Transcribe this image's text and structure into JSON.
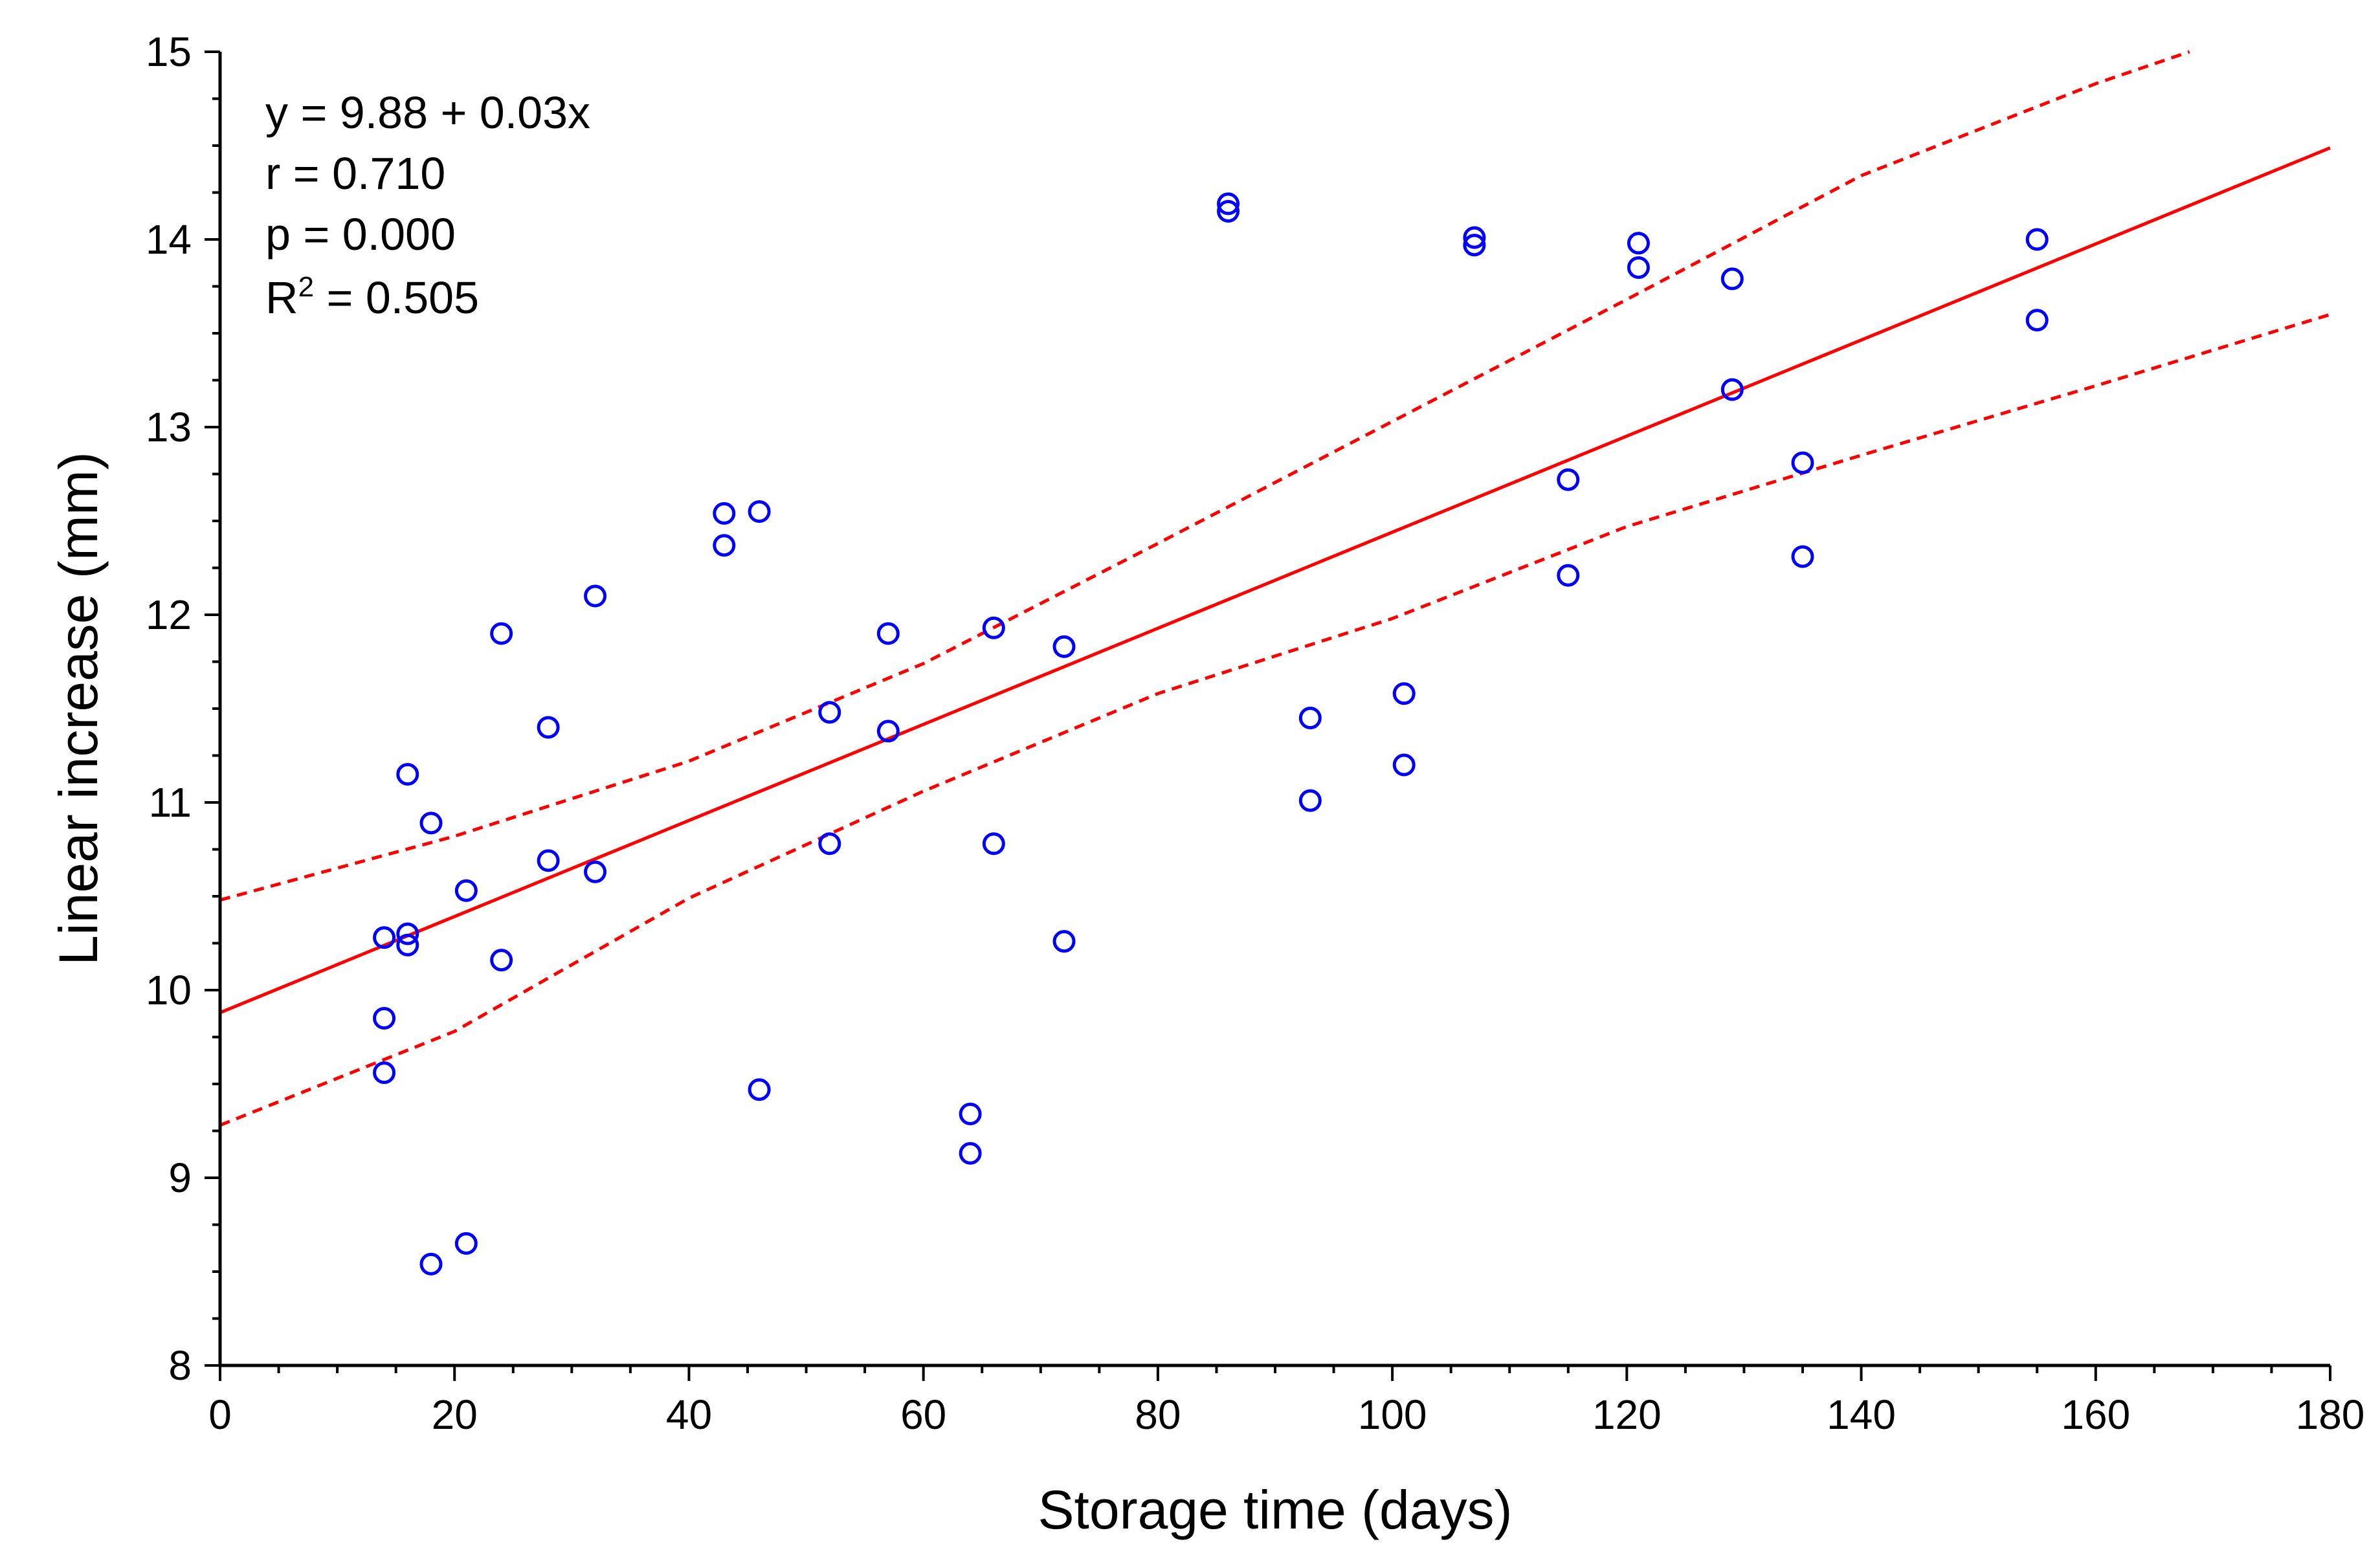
{
  "chart_data": {
    "type": "scatter",
    "title": "",
    "xlabel": "Storage time (days)",
    "ylabel": "Linear increase (mm)",
    "xlim": [
      0,
      180
    ],
    "ylim": [
      8,
      15
    ],
    "x_ticks": [
      0,
      20,
      40,
      60,
      80,
      100,
      120,
      140,
      160,
      180
    ],
    "x_tick_labels": [
      "0",
      "20",
      "40",
      "60",
      "80",
      "100",
      "120",
      "140",
      "160",
      "180"
    ],
    "y_ticks": [
      8,
      9,
      10,
      11,
      12,
      13,
      14,
      15
    ],
    "y_tick_labels": [
      "8",
      "9",
      "10",
      "11",
      "12",
      "13",
      "14",
      "15"
    ],
    "grid": false,
    "annotation": {
      "equation": "y = 9.88 + 0.03x",
      "r": "r = 0.710",
      "p": "p = 0.000",
      "r2_prefix": "R",
      "r2_superscript": "2",
      "r2_suffix": " = 0.505"
    },
    "regression": {
      "intercept": 9.88,
      "slope": 0.0256,
      "x_start": 0,
      "x_end": 180,
      "color": "#ff0000",
      "style": "solid"
    },
    "confidence_band": {
      "color": "#ff0000",
      "style": "dashed",
      "upper": [
        [
          0,
          10.48
        ],
        [
          20,
          10.82
        ],
        [
          40,
          11.22
        ],
        [
          60,
          11.74
        ],
        [
          80,
          12.38
        ],
        [
          100,
          13.03
        ],
        [
          120,
          13.68
        ],
        [
          140,
          14.34
        ],
        [
          160,
          14.83
        ],
        [
          168,
          15.0
        ]
      ],
      "lower": [
        [
          0,
          9.28
        ],
        [
          20,
          9.78
        ],
        [
          40,
          10.49
        ],
        [
          60,
          11.06
        ],
        [
          80,
          11.58
        ],
        [
          100,
          11.98
        ],
        [
          120,
          12.47
        ],
        [
          140,
          12.85
        ],
        [
          160,
          13.22
        ],
        [
          180,
          13.6
        ]
      ]
    },
    "series": [
      {
        "name": "observations",
        "marker": "circle-open",
        "color": "#0000ff",
        "points": [
          [
            14,
            10.28
          ],
          [
            14,
            9.85
          ],
          [
            14,
            9.56
          ],
          [
            16,
            11.15
          ],
          [
            16,
            10.3
          ],
          [
            16,
            10.24
          ],
          [
            18,
            10.89
          ],
          [
            18,
            8.54
          ],
          [
            21,
            10.53
          ],
          [
            21,
            8.65
          ],
          [
            24,
            11.9
          ],
          [
            24,
            10.16
          ],
          [
            28,
            11.4
          ],
          [
            28,
            10.69
          ],
          [
            32,
            12.1
          ],
          [
            32,
            10.63
          ],
          [
            43,
            12.54
          ],
          [
            43,
            12.37
          ],
          [
            46,
            12.55
          ],
          [
            46,
            9.47
          ],
          [
            52,
            11.48
          ],
          [
            52,
            10.78
          ],
          [
            57,
            11.9
          ],
          [
            57,
            11.38
          ],
          [
            64,
            9.34
          ],
          [
            64,
            9.13
          ],
          [
            66,
            11.93
          ],
          [
            66,
            10.78
          ],
          [
            72,
            11.83
          ],
          [
            72,
            10.26
          ],
          [
            86,
            14.19
          ],
          [
            86,
            14.15
          ],
          [
            93,
            11.45
          ],
          [
            93,
            11.01
          ],
          [
            101,
            11.58
          ],
          [
            101,
            11.2
          ],
          [
            107,
            14.01
          ],
          [
            107,
            13.97
          ],
          [
            115,
            12.72
          ],
          [
            115,
            12.21
          ],
          [
            121,
            13.98
          ],
          [
            121,
            13.85
          ],
          [
            129,
            13.79
          ],
          [
            129,
            13.2
          ],
          [
            135,
            12.81
          ],
          [
            135,
            12.31
          ],
          [
            155,
            14.0
          ],
          [
            155,
            13.57
          ]
        ]
      }
    ]
  }
}
